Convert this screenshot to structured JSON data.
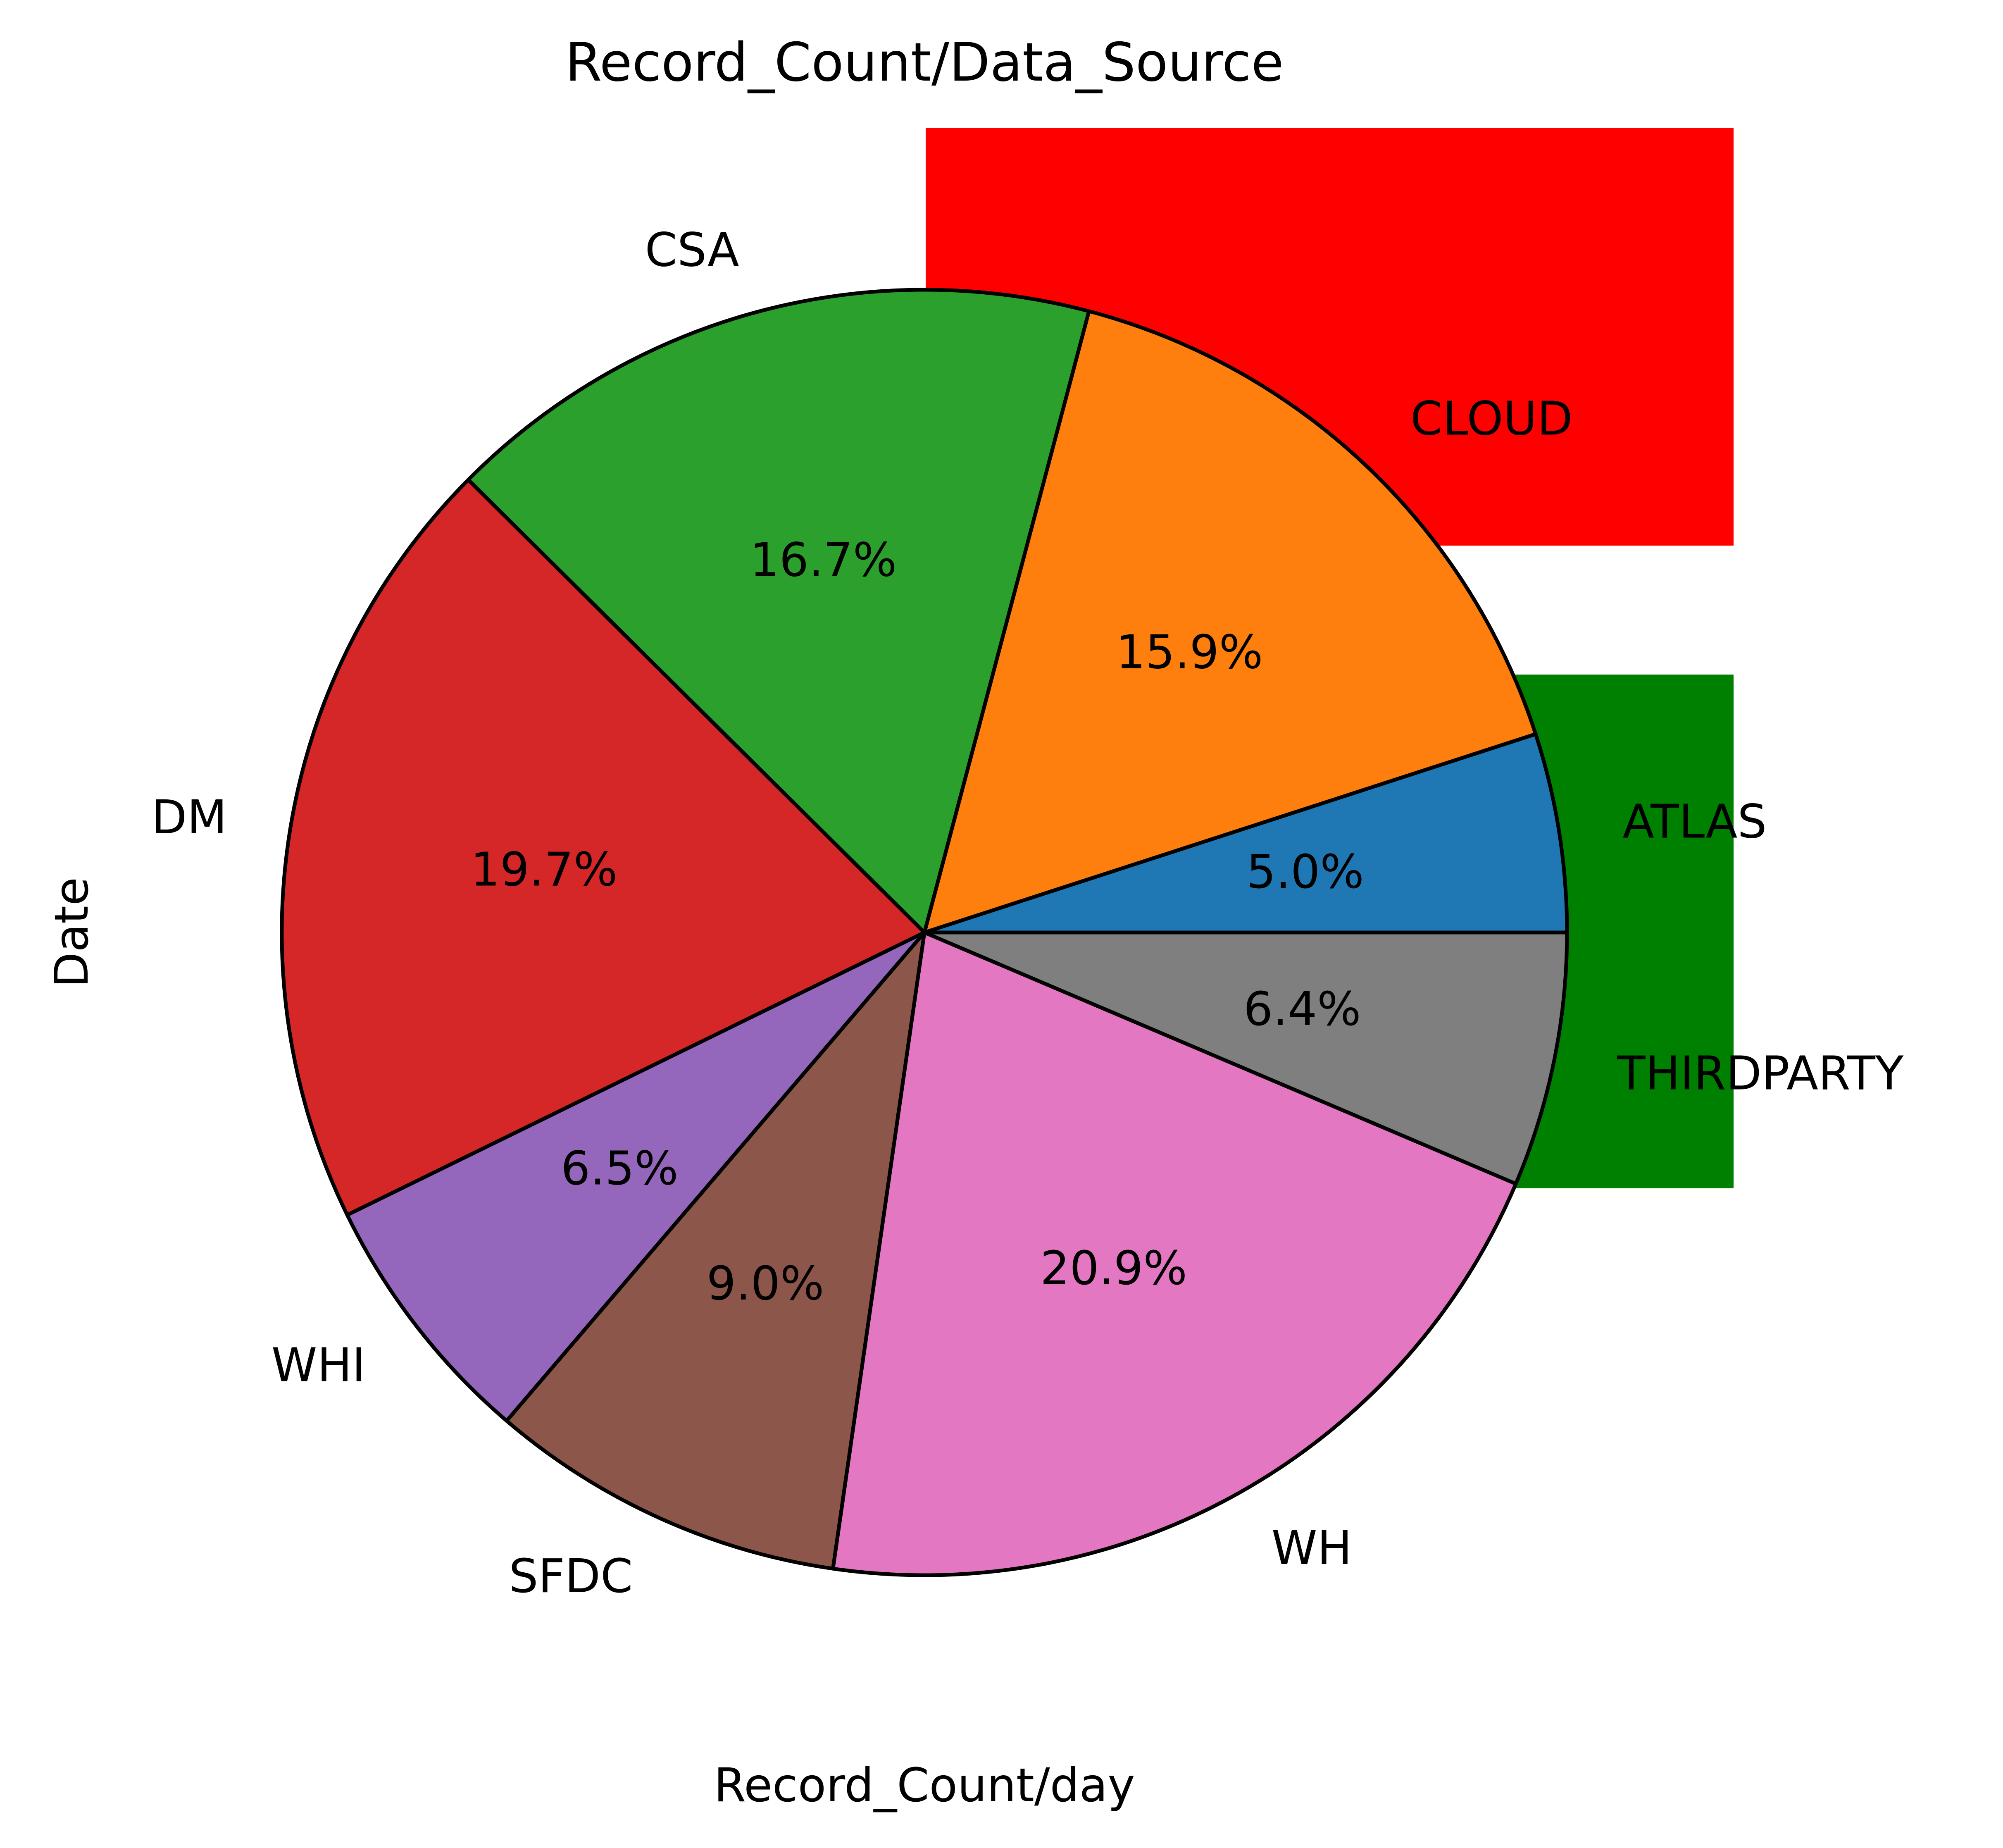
{
  "chart_data": {
    "type": "pie",
    "title": "Record_Count/Data_Source",
    "xlabel": "Record_Count/day",
    "ylabel": "Date",
    "start_angle_deg": 0,
    "direction": "counterclockwise",
    "edge_color": "#000000",
    "slices": [
      {
        "label": "ATLAS",
        "value": 5.0,
        "pct_label": "5.0%",
        "color": "#1f77b4"
      },
      {
        "label": "CLOUD",
        "value": 15.9,
        "pct_label": "15.9%",
        "color": "#ff7f0e"
      },
      {
        "label": "CSA",
        "value": 16.7,
        "pct_label": "16.7%",
        "color": "#2ca02c"
      },
      {
        "label": "DM",
        "value": 19.7,
        "pct_label": "19.7%",
        "color": "#d62728"
      },
      {
        "label": "WHI",
        "value": 6.5,
        "pct_label": "6.5%",
        "color": "#9467bd"
      },
      {
        "label": "SFDC",
        "value": 9.0,
        "pct_label": "9.0%",
        "color": "#8c564b"
      },
      {
        "label": "WH",
        "value": 20.9,
        "pct_label": "20.9%",
        "color": "#e377c2"
      },
      {
        "label": "THIRDPARTY",
        "value": 6.4,
        "pct_label": "6.4%",
        "color": "#7f7f7f"
      }
    ],
    "highlight_boxes": [
      {
        "color": "#ff0000"
      },
      {
        "color": "#008000"
      }
    ]
  }
}
